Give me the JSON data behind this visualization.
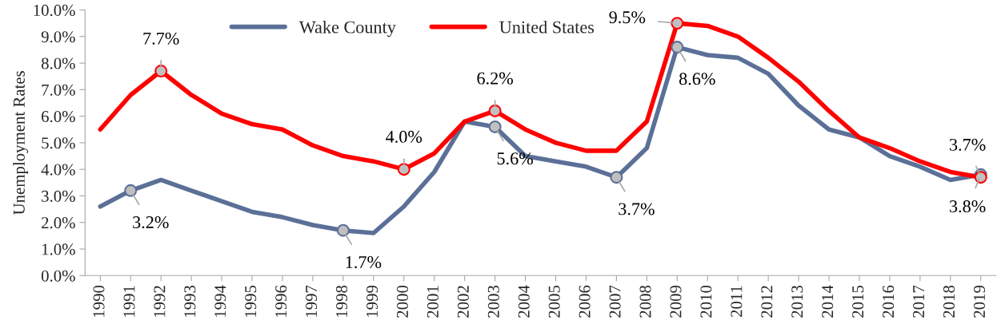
{
  "chart_data": {
    "type": "line",
    "ylabel": "Unemployment Rates",
    "categories": [
      "1990",
      "1991",
      "1992",
      "1993",
      "1994",
      "1995",
      "1996",
      "1997",
      "1998",
      "1999",
      "2000",
      "2001",
      "2002",
      "2003",
      "2004",
      "2005",
      "2006",
      "2007",
      "2008",
      "2009",
      "2010",
      "2011",
      "2012",
      "2013",
      "2014",
      "2015",
      "2016",
      "2017",
      "2018",
      "2019"
    ],
    "series": [
      {
        "name": "Wake County",
        "color": "#5b7097",
        "values": [
          2.6,
          3.2,
          3.6,
          3.2,
          2.8,
          2.4,
          2.2,
          1.9,
          1.7,
          1.6,
          2.6,
          3.9,
          5.8,
          5.6,
          4.5,
          4.3,
          4.1,
          3.7,
          4.8,
          8.6,
          8.3,
          8.2,
          7.6,
          6.4,
          5.5,
          5.2,
          4.5,
          4.1,
          3.6,
          3.8
        ],
        "value_labels": [
          null,
          "3.2%",
          null,
          null,
          null,
          null,
          null,
          null,
          "1.7%",
          null,
          null,
          null,
          null,
          "5.6%",
          null,
          null,
          null,
          "3.7%",
          null,
          "8.6%",
          null,
          null,
          null,
          null,
          null,
          null,
          null,
          null,
          null,
          "3.8%"
        ]
      },
      {
        "name": "United States",
        "color": "#ff0000",
        "values": [
          5.5,
          6.8,
          7.7,
          6.8,
          6.1,
          5.7,
          5.5,
          4.9,
          4.5,
          4.3,
          4.0,
          4.6,
          5.8,
          6.2,
          5.5,
          5.0,
          4.7,
          4.7,
          5.8,
          9.5,
          9.4,
          9.0,
          8.2,
          7.3,
          6.2,
          5.2,
          4.8,
          4.3,
          3.9,
          3.7
        ],
        "value_labels": [
          null,
          null,
          "7.7%",
          null,
          null,
          null,
          null,
          null,
          null,
          null,
          "4.0%",
          null,
          null,
          "6.2%",
          null,
          null,
          null,
          null,
          null,
          "9.5%",
          null,
          null,
          null,
          null,
          null,
          null,
          null,
          null,
          null,
          "3.7%"
        ]
      }
    ],
    "ylim": [
      0,
      10
    ],
    "yticks": [
      {
        "value": 0,
        "label": "0.0%"
      },
      {
        "value": 1,
        "label": "1.0%"
      },
      {
        "value": 2,
        "label": "2.0%"
      },
      {
        "value": 3,
        "label": "3.0%"
      },
      {
        "value": 4,
        "label": "4.0%"
      },
      {
        "value": 5,
        "label": "5.0%"
      },
      {
        "value": 6,
        "label": "6.0%"
      },
      {
        "value": 7,
        "label": "7.0%"
      },
      {
        "value": 8,
        "label": "8.0%"
      },
      {
        "value": 9,
        "label": "9.0%"
      },
      {
        "value": 10,
        "label": "10.0%"
      }
    ],
    "grid": false,
    "legend": "top",
    "line_style": "solid"
  }
}
